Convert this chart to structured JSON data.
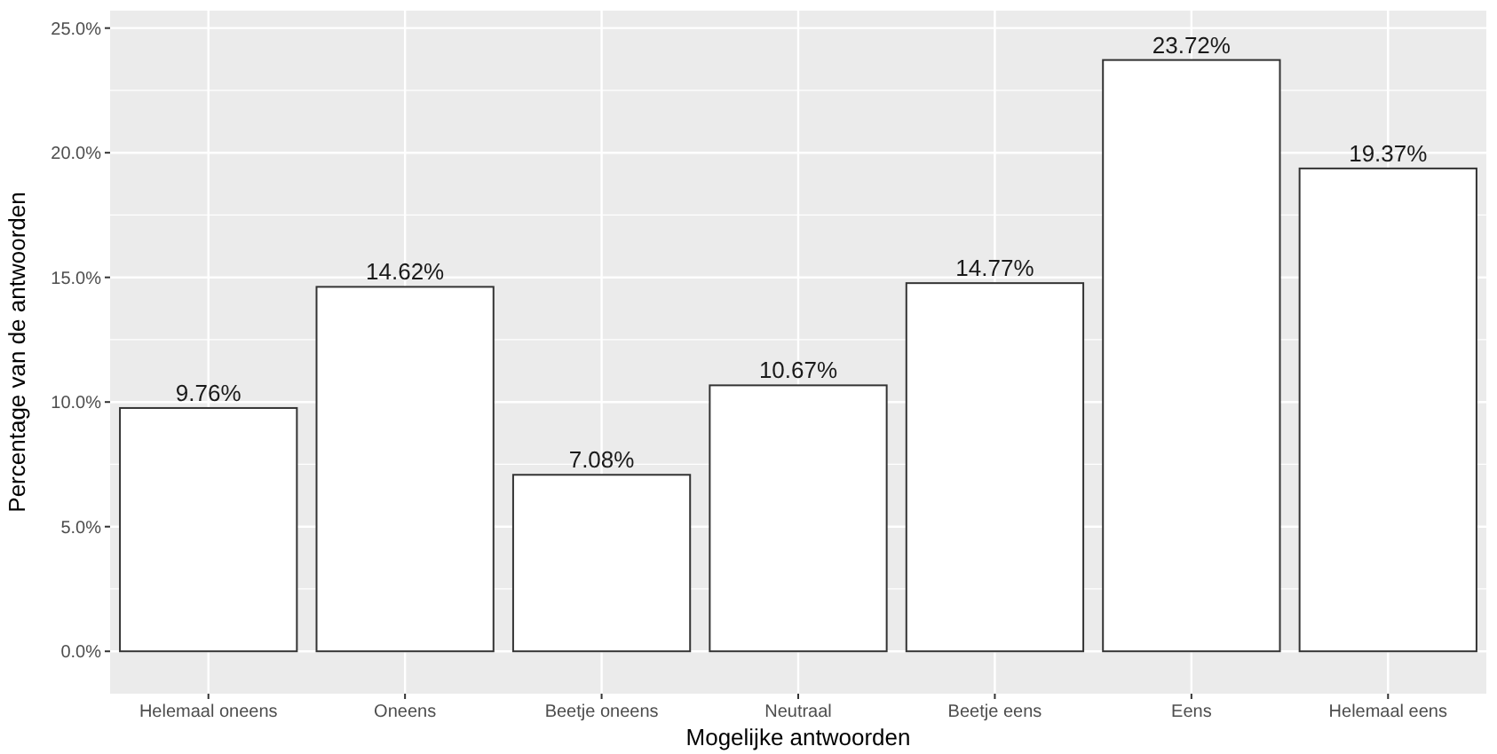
{
  "chart_data": {
    "type": "bar",
    "xlabel": "Mogelijke antwoorden",
    "ylabel": "Percentage van de antwoorden",
    "categories": [
      "Helemaal oneens",
      "Oneens",
      "Beetje oneens",
      "Neutraal",
      "Beetje eens",
      "Eens",
      "Helemaal eens"
    ],
    "values": [
      9.76,
      14.62,
      7.08,
      10.67,
      14.77,
      23.72,
      19.37
    ],
    "value_labels": [
      "9.76%",
      "14.62%",
      "7.08%",
      "10.67%",
      "14.77%",
      "23.72%",
      "19.37%"
    ],
    "color": "#ffffff",
    "ylim": [
      -1.7,
      25.7
    ],
    "yticks": [
      {
        "value": 0,
        "label": "0.0%"
      },
      {
        "value": 5,
        "label": "5.0%"
      },
      {
        "value": 10,
        "label": "10.0%"
      },
      {
        "value": 15,
        "label": "15.0%"
      },
      {
        "value": 20,
        "label": "20.0%"
      },
      {
        "value": 25,
        "label": "25.0%"
      }
    ],
    "grid": true
  }
}
